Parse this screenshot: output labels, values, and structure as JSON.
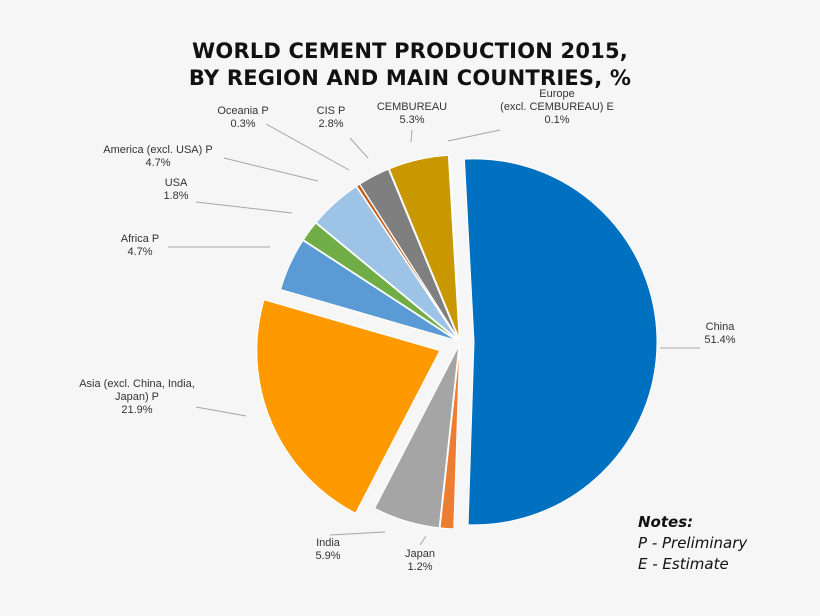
{
  "title_line1": "WORLD CEMENT PRODUCTION 2015,",
  "title_line2": "BY REGION AND MAIN COUNTRIES, %",
  "notes": {
    "heading": "Notes:",
    "line1": "P - Preliminary",
    "line2": "E - Estimate"
  },
  "chart_data": {
    "type": "pie",
    "title": "WORLD CEMENT PRODUCTION 2015, BY REGION AND MAIN COUNTRIES, %",
    "slices": [
      {
        "label": "China",
        "value": 51.4,
        "value_label": "51.4%",
        "color": "#0070c0"
      },
      {
        "label": "Japan",
        "value": 1.2,
        "value_label": "1.2%",
        "color": "#ed7d31"
      },
      {
        "label": "India",
        "value": 5.9,
        "value_label": "5.9%",
        "color": "#a5a5a5"
      },
      {
        "label": "Asia (excl. China, India, Japan) P",
        "value": 21.9,
        "value_label": "21.9%",
        "color": "#ff9900"
      },
      {
        "label": "Africa P",
        "value": 4.7,
        "value_label": "4.7%",
        "color": "#5b9bd5"
      },
      {
        "label": "USA",
        "value": 1.8,
        "value_label": "1.8%",
        "color": "#70ad47"
      },
      {
        "label": "America (excl. USA) P",
        "value": 4.7,
        "value_label": "4.7%",
        "color": "#9dc3e6"
      },
      {
        "label": "Oceania P",
        "value": 0.3,
        "value_label": "0.3%",
        "color": "#c55a11"
      },
      {
        "label": "CIS P",
        "value": 2.8,
        "value_label": "2.8%",
        "color": "#7f7f7f"
      },
      {
        "label": "CEMBUREAU",
        "value": 5.3,
        "value_label": "5.3%",
        "color": "#c99700"
      },
      {
        "label": "Europe (excl. CEMBUREAU)  E",
        "value": 0.1,
        "value_label": "0.1%",
        "color": "#4bacc6"
      }
    ]
  }
}
